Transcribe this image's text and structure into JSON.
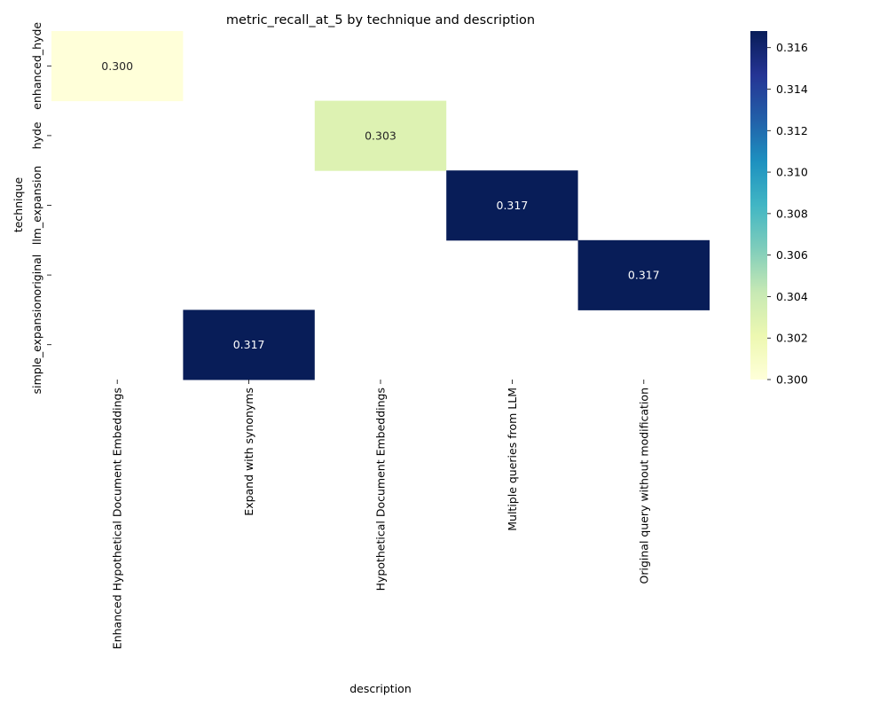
{
  "chart_data": {
    "type": "heatmap",
    "title": "metric_recall_at_5 by technique and description",
    "xlabel": "description",
    "ylabel": "technique",
    "x_categories": [
      "Enhanced Hypothetical Document Embeddings",
      "Expand with synonyms",
      "Hypothetical Document Embeddings",
      "Multiple queries from LLM",
      "Original query without modification"
    ],
    "y_categories": [
      "enhanced_hyde",
      "hyde",
      "llm_expansion",
      "original",
      "simple_expansion"
    ],
    "cells": [
      {
        "technique": "enhanced_hyde",
        "description": "Enhanced Hypothetical Document Embeddings",
        "value": 0.3,
        "label": "0.300"
      },
      {
        "technique": "hyde",
        "description": "Hypothetical Document Embeddings",
        "value": 0.303,
        "label": "0.303"
      },
      {
        "technique": "llm_expansion",
        "description": "Multiple queries from LLM",
        "value": 0.317,
        "label": "0.317"
      },
      {
        "technique": "original",
        "description": "Original query without modification",
        "value": 0.317,
        "label": "0.317"
      },
      {
        "technique": "simple_expansion",
        "description": "Expand with synonyms",
        "value": 0.317,
        "label": "0.317"
      }
    ],
    "colorbar": {
      "colormap": "YlGnBu",
      "range": [
        0.3,
        0.3168
      ],
      "ticks": [
        "0.300",
        "0.302",
        "0.304",
        "0.306",
        "0.308",
        "0.310",
        "0.312",
        "0.314",
        "0.316"
      ]
    }
  }
}
